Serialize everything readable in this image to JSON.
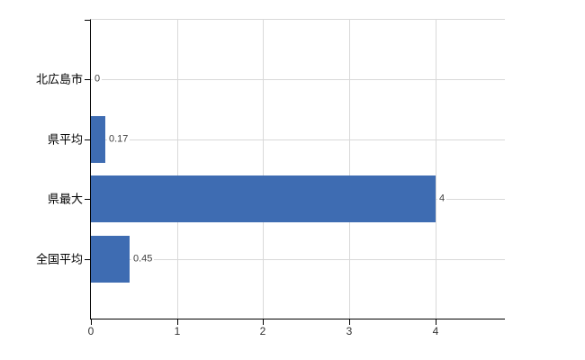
{
  "chart_data": {
    "type": "bar",
    "orientation": "horizontal",
    "title": "",
    "xlabel": "",
    "ylabel": "",
    "categories": [
      "北広島市",
      "県平均",
      "県最大",
      "全国平均"
    ],
    "values": [
      0,
      0.17,
      4,
      0.45
    ],
    "value_labels": [
      "0",
      "0.17",
      "4",
      "0.45"
    ],
    "x_ticks": [
      0,
      1,
      2,
      3,
      4
    ],
    "xlim": [
      0,
      4.8
    ],
    "grid": true,
    "legend": false,
    "colors": {
      "bar": "#3e6cb2",
      "grid": "#d9d9d9",
      "axis": "#000000",
      "value_label": "#404040",
      "category_label": "#000000",
      "tick_label": "#333333",
      "background": "#ffffff"
    }
  }
}
